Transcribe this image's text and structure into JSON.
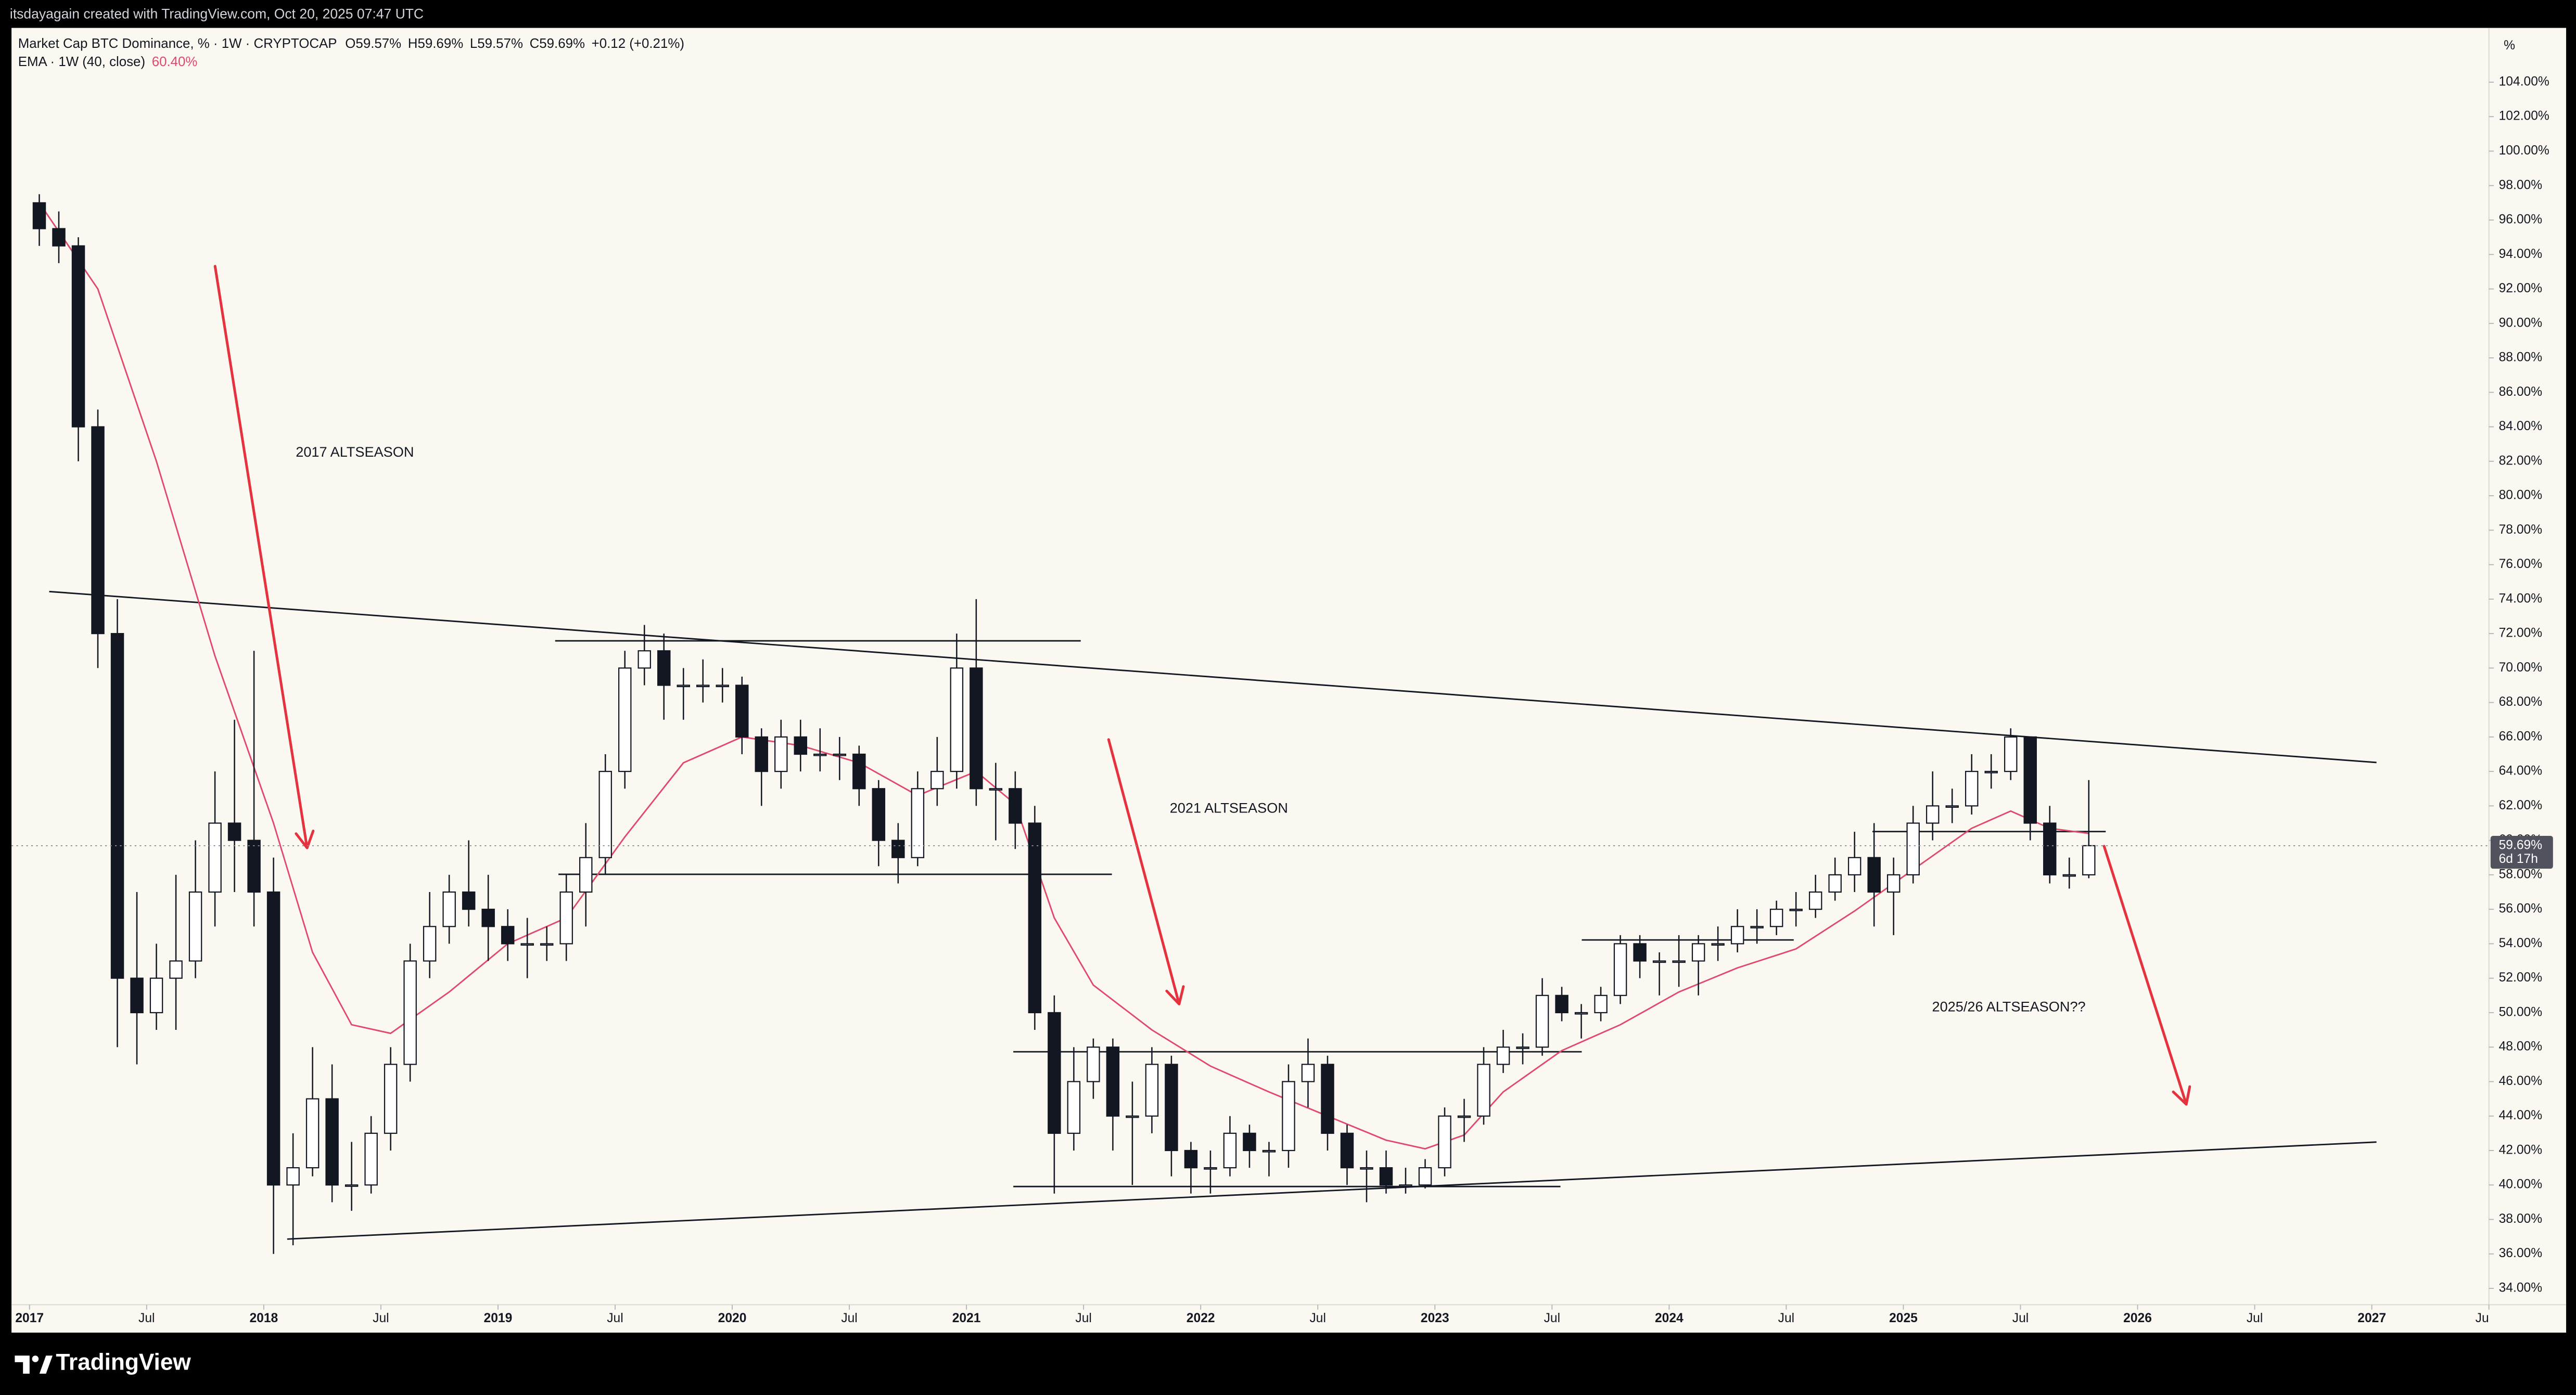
{
  "header": {
    "credit": "itsdayagain created with TradingView.com, Oct 20, 2025 07:47 UTC",
    "brand": "TradingView"
  },
  "chart_data": {
    "type": "candlestick",
    "legend": {
      "symbol": "Market Cap BTC Dominance, % · 1W · CRYPTOCAP",
      "open": "O59.57%",
      "high": "H59.69%",
      "low": "L59.57%",
      "close": "C59.69%",
      "change": "+0.12 (+0.21%)",
      "indicator": "EMA · 1W (40, close)",
      "indicator_value": "60.40%"
    },
    "y_unit": "%",
    "background": "#faf8f0",
    "up_color": "#ffffff",
    "down_color": "#131722",
    "x": [
      "2017-01",
      "2017-02",
      "2017-03",
      "2017-04",
      "2017-05",
      "2017-06",
      "2017-07",
      "2017-08",
      "2017-09",
      "2017-10",
      "2017-11",
      "2017-12",
      "2018-01",
      "2018-02",
      "2018-03",
      "2018-04",
      "2018-05",
      "2018-06",
      "2018-07",
      "2018-08",
      "2018-09",
      "2018-10",
      "2018-11",
      "2018-12",
      "2019-01",
      "2019-02",
      "2019-03",
      "2019-04",
      "2019-05",
      "2019-06",
      "2019-07",
      "2019-08",
      "2019-09",
      "2019-10",
      "2019-11",
      "2019-12",
      "2020-01",
      "2020-02",
      "2020-03",
      "2020-04",
      "2020-05",
      "2020-06",
      "2020-07",
      "2020-08",
      "2020-09",
      "2020-10",
      "2020-11",
      "2020-12",
      "2021-01",
      "2021-02",
      "2021-03",
      "2021-04",
      "2021-05",
      "2021-06",
      "2021-07",
      "2021-08",
      "2021-09",
      "2021-10",
      "2021-11",
      "2021-12",
      "2022-01",
      "2022-02",
      "2022-03",
      "2022-04",
      "2022-05",
      "2022-06",
      "2022-07",
      "2022-08",
      "2022-09",
      "2022-10",
      "2022-11",
      "2022-12",
      "2023-01",
      "2023-02",
      "2023-03",
      "2023-04",
      "2023-05",
      "2023-06",
      "2023-07",
      "2023-08",
      "2023-09",
      "2023-10",
      "2023-11",
      "2023-12",
      "2024-01",
      "2024-02",
      "2024-03",
      "2024-04",
      "2024-05",
      "2024-06",
      "2024-07",
      "2024-08",
      "2024-09",
      "2024-10",
      "2024-11",
      "2024-12",
      "2025-01",
      "2025-02",
      "2025-03",
      "2025-04",
      "2025-05",
      "2025-06",
      "2025-07",
      "2025-08",
      "2025-09",
      "2025-10"
    ],
    "open": [
      97,
      95.5,
      94.5,
      84,
      72,
      52,
      50,
      52,
      53,
      57,
      61,
      60,
      57,
      40,
      41,
      45,
      40,
      40,
      43,
      47,
      53,
      55,
      57,
      56,
      55,
      54,
      54,
      54,
      57,
      59,
      64,
      70,
      71,
      69,
      69,
      69,
      69,
      66,
      64,
      66,
      65,
      65,
      65,
      63,
      60,
      59,
      63,
      64,
      70,
      63,
      63,
      61,
      50,
      43,
      46,
      48,
      44,
      44,
      47,
      42,
      41,
      41,
      43,
      42,
      42,
      46,
      47,
      43,
      41,
      41,
      40,
      40,
      41,
      44,
      44,
      47,
      48,
      48,
      51,
      50,
      50,
      51,
      54,
      53,
      53,
      53,
      54,
      54,
      55,
      55,
      56,
      56,
      57,
      58,
      59,
      57,
      58,
      61,
      62,
      62,
      64,
      64,
      66,
      61,
      58,
      58
    ],
    "high": [
      97.5,
      96.5,
      95,
      85,
      74,
      57,
      54,
      58,
      60,
      64,
      67,
      71,
      59,
      43,
      48,
      47,
      42.5,
      44,
      48,
      54,
      57,
      58,
      60,
      58,
      56,
      55.5,
      55,
      58,
      61,
      65,
      71,
      72.5,
      72,
      70,
      70.5,
      70,
      69.5,
      66.5,
      67,
      67,
      66.5,
      66,
      65.5,
      63.5,
      61,
      64,
      66,
      72,
      74,
      64.5,
      64,
      62,
      51,
      48,
      48.5,
      48.5,
      46,
      48,
      47.5,
      42.5,
      42,
      44,
      43.5,
      42.5,
      47,
      48.5,
      47.5,
      43.5,
      42,
      42,
      41,
      41.5,
      44.5,
      45,
      48,
      49,
      48.8,
      52,
      51.5,
      50.5,
      51.5,
      54.5,
      54.5,
      53.5,
      54.5,
      54.5,
      55,
      56,
      56,
      56.5,
      57,
      58,
      59,
      60.5,
      61,
      59,
      62,
      64,
      63,
      65,
      65,
      66.5,
      66,
      62,
      59,
      63.5
    ],
    "low": [
      94.5,
      93.5,
      82,
      70,
      48,
      47,
      49,
      49,
      52,
      55,
      57,
      55,
      36,
      36.5,
      40.5,
      39,
      38.5,
      39.5,
      42,
      46,
      52,
      54,
      55,
      53,
      53,
      52,
      53,
      53,
      55,
      58,
      63,
      69,
      67,
      67,
      68,
      68,
      65,
      62,
      63,
      64,
      64,
      63.5,
      62,
      58.5,
      57.5,
      58.5,
      62,
      63,
      62,
      60,
      59.5,
      49,
      39.5,
      42,
      45,
      42,
      40,
      43,
      40.5,
      39.5,
      39.5,
      40.5,
      41,
      40.5,
      41,
      44.5,
      42,
      40,
      39,
      39.5,
      39.5,
      39.8,
      40.5,
      42.5,
      43.5,
      46.5,
      47,
      47.5,
      49.5,
      48.5,
      49.5,
      50.5,
      52,
      51,
      51.5,
      51,
      53,
      53.5,
      54,
      54.5,
      55,
      55.5,
      56.5,
      57,
      55,
      54.5,
      57.5,
      60,
      61,
      61.5,
      63,
      63.5,
      60,
      57.5,
      57.2,
      57.8
    ],
    "close": [
      95.5,
      94.5,
      84,
      72,
      52,
      50,
      52,
      53,
      57,
      61,
      60,
      57,
      40,
      41,
      45,
      40,
      40,
      43,
      47,
      53,
      55,
      57,
      56,
      55,
      54,
      54,
      54,
      57,
      59,
      64,
      70,
      71,
      69,
      69,
      69,
      69,
      66,
      64,
      66,
      65,
      65,
      65,
      63,
      60,
      59,
      63,
      64,
      70,
      63,
      63,
      61,
      50,
      43,
      46,
      48,
      44,
      44,
      47,
      42,
      41,
      41,
      43,
      42,
      42,
      46,
      47,
      43,
      41,
      41,
      40,
      40,
      41,
      44,
      44,
      47,
      48,
      48,
      51,
      50,
      50,
      51,
      54,
      53,
      53,
      53,
      54,
      54,
      55,
      55,
      56,
      56,
      57,
      58,
      59,
      57,
      58,
      61,
      62,
      62,
      64,
      64,
      66,
      61,
      58,
      58,
      59.69
    ],
    "ema": {
      "color": "#e0486c",
      "x": [
        "2017-01",
        "2017-04",
        "2017-07",
        "2017-10",
        "2018-01",
        "2018-03",
        "2018-05",
        "2018-07",
        "2018-10",
        "2019-01",
        "2019-04",
        "2019-07",
        "2019-10",
        "2020-01",
        "2020-04",
        "2020-07",
        "2020-10",
        "2021-01",
        "2021-03",
        "2021-05",
        "2021-07",
        "2021-10",
        "2022-01",
        "2022-04",
        "2022-07",
        "2022-10",
        "2022-12",
        "2023-02",
        "2023-04",
        "2023-07",
        "2023-10",
        "2024-01",
        "2024-04",
        "2024-07",
        "2024-10",
        "2025-01",
        "2025-04",
        "2025-06",
        "2025-08",
        "2025-10"
      ],
      "values": [
        97,
        92,
        82,
        70.7,
        61,
        53.5,
        49.3,
        48.8,
        51.2,
        54,
        55.5,
        60.2,
        64.5,
        66,
        65.5,
        64.5,
        62.6,
        64,
        62.1,
        55.5,
        51.6,
        49,
        46.9,
        45.4,
        44,
        42.6,
        42.1,
        42.9,
        45.4,
        47.8,
        49.3,
        51.2,
        52.6,
        53.7,
        55.9,
        58.3,
        60.7,
        61.7,
        60.7,
        60.4
      ]
    },
    "last_price": {
      "value": 59.69,
      "label": "59.69%"
    },
    "countdown": "6d 17h",
    "xlim": [
      2016.923,
      2027.5
    ],
    "xticks": [
      {
        "value": 2017,
        "label": "2017"
      },
      {
        "value": 2017.5,
        "label": "Jul"
      },
      {
        "value": 2018,
        "label": "2018"
      },
      {
        "value": 2018.5,
        "label": "Jul"
      },
      {
        "value": 2019,
        "label": "2019"
      },
      {
        "value": 2019.5,
        "label": "Jul"
      },
      {
        "value": 2020,
        "label": "2020"
      },
      {
        "value": 2020.5,
        "label": "Jul"
      },
      {
        "value": 2021,
        "label": "2021"
      },
      {
        "value": 2021.5,
        "label": "Jul"
      },
      {
        "value": 2022,
        "label": "2022"
      },
      {
        "value": 2022.5,
        "label": "Jul"
      },
      {
        "value": 2023,
        "label": "2023"
      },
      {
        "value": 2023.5,
        "label": "Jul"
      },
      {
        "value": 2024,
        "label": "2024"
      },
      {
        "value": 2024.5,
        "label": "Jul"
      },
      {
        "value": 2025,
        "label": "2025"
      },
      {
        "value": 2025.5,
        "label": "Jul"
      },
      {
        "value": 2026,
        "label": "2026"
      },
      {
        "value": 2026.5,
        "label": "Jul"
      },
      {
        "value": 2027,
        "label": "2027"
      },
      {
        "value": 2027.5,
        "label": "Ju"
      }
    ],
    "ylim": [
      33.05,
      107.15
    ],
    "yticks": [
      {
        "value": 34,
        "label": "34.00%"
      },
      {
        "value": 36,
        "label": "36.00%"
      },
      {
        "value": 38,
        "label": "38.00%"
      },
      {
        "value": 40,
        "label": "40.00%"
      },
      {
        "value": 42,
        "label": "42.00%"
      },
      {
        "value": 44,
        "label": "44.00%"
      },
      {
        "value": 46,
        "label": "46.00%"
      },
      {
        "value": 48,
        "label": "48.00%"
      },
      {
        "value": 50,
        "label": "50.00%"
      },
      {
        "value": 52,
        "label": "52.00%"
      },
      {
        "value": 54,
        "label": "54.00%"
      },
      {
        "value": 56,
        "label": "56.00%"
      },
      {
        "value": 58,
        "label": "58.00%"
      },
      {
        "value": 60,
        "label": "60.00%"
      },
      {
        "value": 62,
        "label": "62.00%"
      },
      {
        "value": 64,
        "label": "64.00%"
      },
      {
        "value": 66,
        "label": "66.00%"
      },
      {
        "value": 68,
        "label": "68.00%"
      },
      {
        "value": 70,
        "label": "70.00%"
      },
      {
        "value": 72,
        "label": "72.00%"
      },
      {
        "value": 74,
        "label": "74.00%"
      },
      {
        "value": 76,
        "label": "76.00%"
      },
      {
        "value": 78,
        "label": "78.00%"
      },
      {
        "value": 80,
        "label": "80.00%"
      },
      {
        "value": 82,
        "label": "82.00%"
      },
      {
        "value": 84,
        "label": "84.00%"
      },
      {
        "value": 86,
        "label": "86.00%"
      },
      {
        "value": 88,
        "label": "88.00%"
      },
      {
        "value": 90,
        "label": "90.00%"
      },
      {
        "value": 92,
        "label": "92.00%"
      },
      {
        "value": 94,
        "label": "94.00%"
      },
      {
        "value": 96,
        "label": "96.00%"
      },
      {
        "value": 98,
        "label": "98.00%"
      },
      {
        "value": 100,
        "label": "100.00%"
      },
      {
        "value": 102,
        "label": "102.00%"
      },
      {
        "value": 104,
        "label": "104.00%"
      }
    ],
    "grid": false,
    "drawings": {
      "line_color": "#131722",
      "lines": [
        {
          "x": [
            2017.084,
            2027.02
          ],
          "y": [
            74.44,
            64.52
          ]
        },
        {
          "x": [
            2018.1,
            2027.02
          ],
          "y": [
            36.86,
            42.49
          ]
        },
        {
          "x": [
            2019.244,
            2021.488
          ],
          "y": [
            71.58,
            71.58
          ]
        },
        {
          "x": [
            2019.258,
            2021.621
          ],
          "y": [
            58.03,
            58.03
          ]
        },
        {
          "x": [
            2021.2,
            2023.627
          ],
          "y": [
            47.73,
            47.73
          ]
        },
        {
          "x": [
            2021.2,
            2023.536
          ],
          "y": [
            39.91,
            39.91
          ]
        },
        {
          "x": [
            2023.627,
            2024.532
          ],
          "y": [
            54.22,
            54.22
          ]
        },
        {
          "x": [
            2024.868,
            2025.864
          ],
          "y": [
            60.51,
            60.51
          ]
        }
      ],
      "arrow_color": "#e5323f",
      "arrows": [
        {
          "x": [
            2017.792,
            2018.185
          ],
          "y": [
            93.32,
            59.56
          ]
        },
        {
          "x": [
            2021.607,
            2021.908
          ],
          "y": [
            65.85,
            50.5
          ]
        },
        {
          "x": [
            2025.857,
            2026.208
          ],
          "y": [
            59.66,
            44.68
          ]
        }
      ],
      "annotations": [
        "2017 ALTSEASON",
        "2021 ALTSEASON",
        "2025/26 ALTSEASON??"
      ]
    }
  }
}
